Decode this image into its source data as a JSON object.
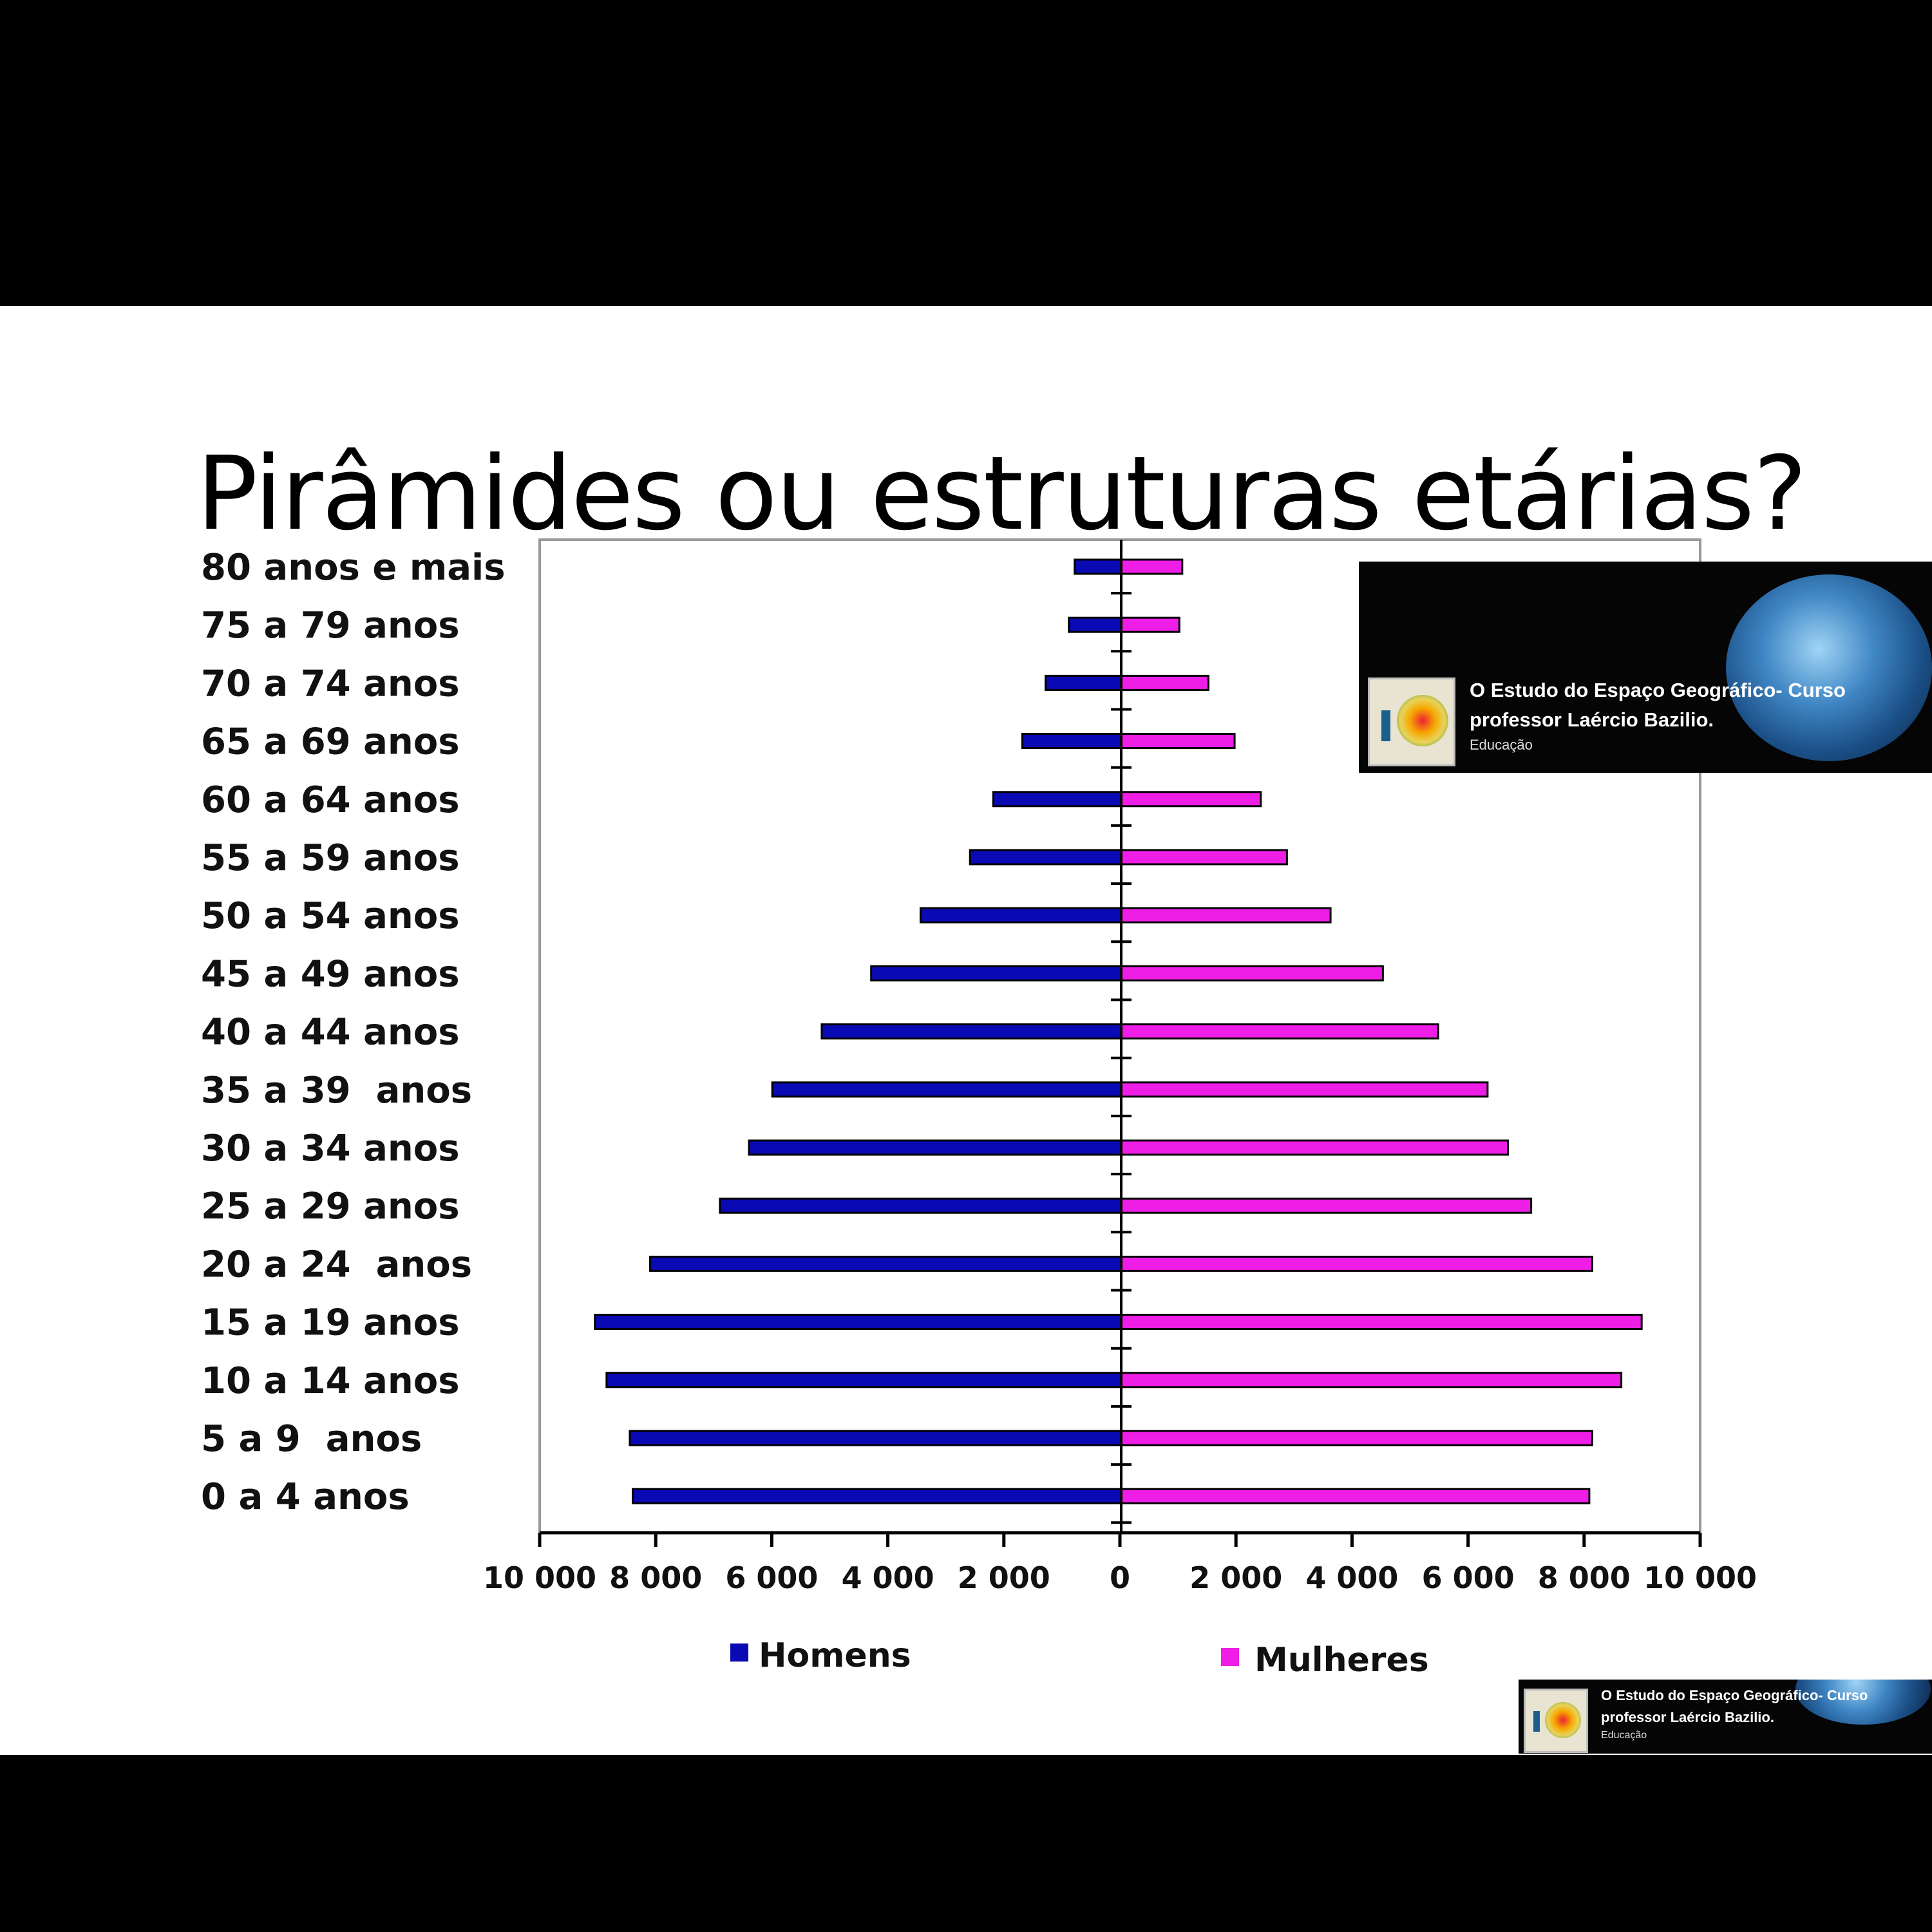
{
  "title": "Pirâmides ou estruturas etárias?",
  "chart_data": {
    "type": "bar",
    "orientation": "horizontal-population-pyramid",
    "categories": [
      "80 anos e mais",
      "75 a 79 anos",
      "70 a 74 anos",
      "65 a 69 anos",
      "60 a 64 anos",
      "55 a 59 anos",
      "50 a 54 anos",
      "45 a 49 anos",
      "40 a 44 anos",
      "35 a 39  anos",
      "30 a 34 anos",
      "25 a 29 anos",
      "20 a 24  anos",
      "15 a 19 anos",
      "10 a 14 anos",
      "5 a 9  anos",
      "0 a 4 anos"
    ],
    "series": [
      {
        "name": "Homens",
        "color": "#0a0ab4",
        "values": [
          800,
          900,
          1300,
          1700,
          2200,
          2600,
          3450,
          4300,
          5150,
          6000,
          6400,
          6900,
          8100,
          9050,
          8850,
          8450,
          8400
        ]
      },
      {
        "name": "Mulheres",
        "color": "#ee1ee6",
        "values": [
          1050,
          1000,
          1500,
          1950,
          2400,
          2850,
          3600,
          4500,
          5450,
          6300,
          6650,
          7050,
          8100,
          8950,
          8600,
          8100,
          8050
        ]
      }
    ],
    "xlim": [
      -10000,
      10000
    ],
    "x_tick_labels": [
      "10 000",
      "8 000",
      "6 000",
      "4 000",
      "2 000",
      "0",
      "2 000",
      "4 000",
      "6 000",
      "8 000",
      "10 000"
    ],
    "xlabel": "",
    "ylabel": "",
    "legend_position": "bottom",
    "grid": false
  },
  "watermark": {
    "line1": "O Estudo do Espaço Geográfico- Curso",
    "line2": "professor Laércio Bazilio.",
    "line3": "Educação"
  }
}
